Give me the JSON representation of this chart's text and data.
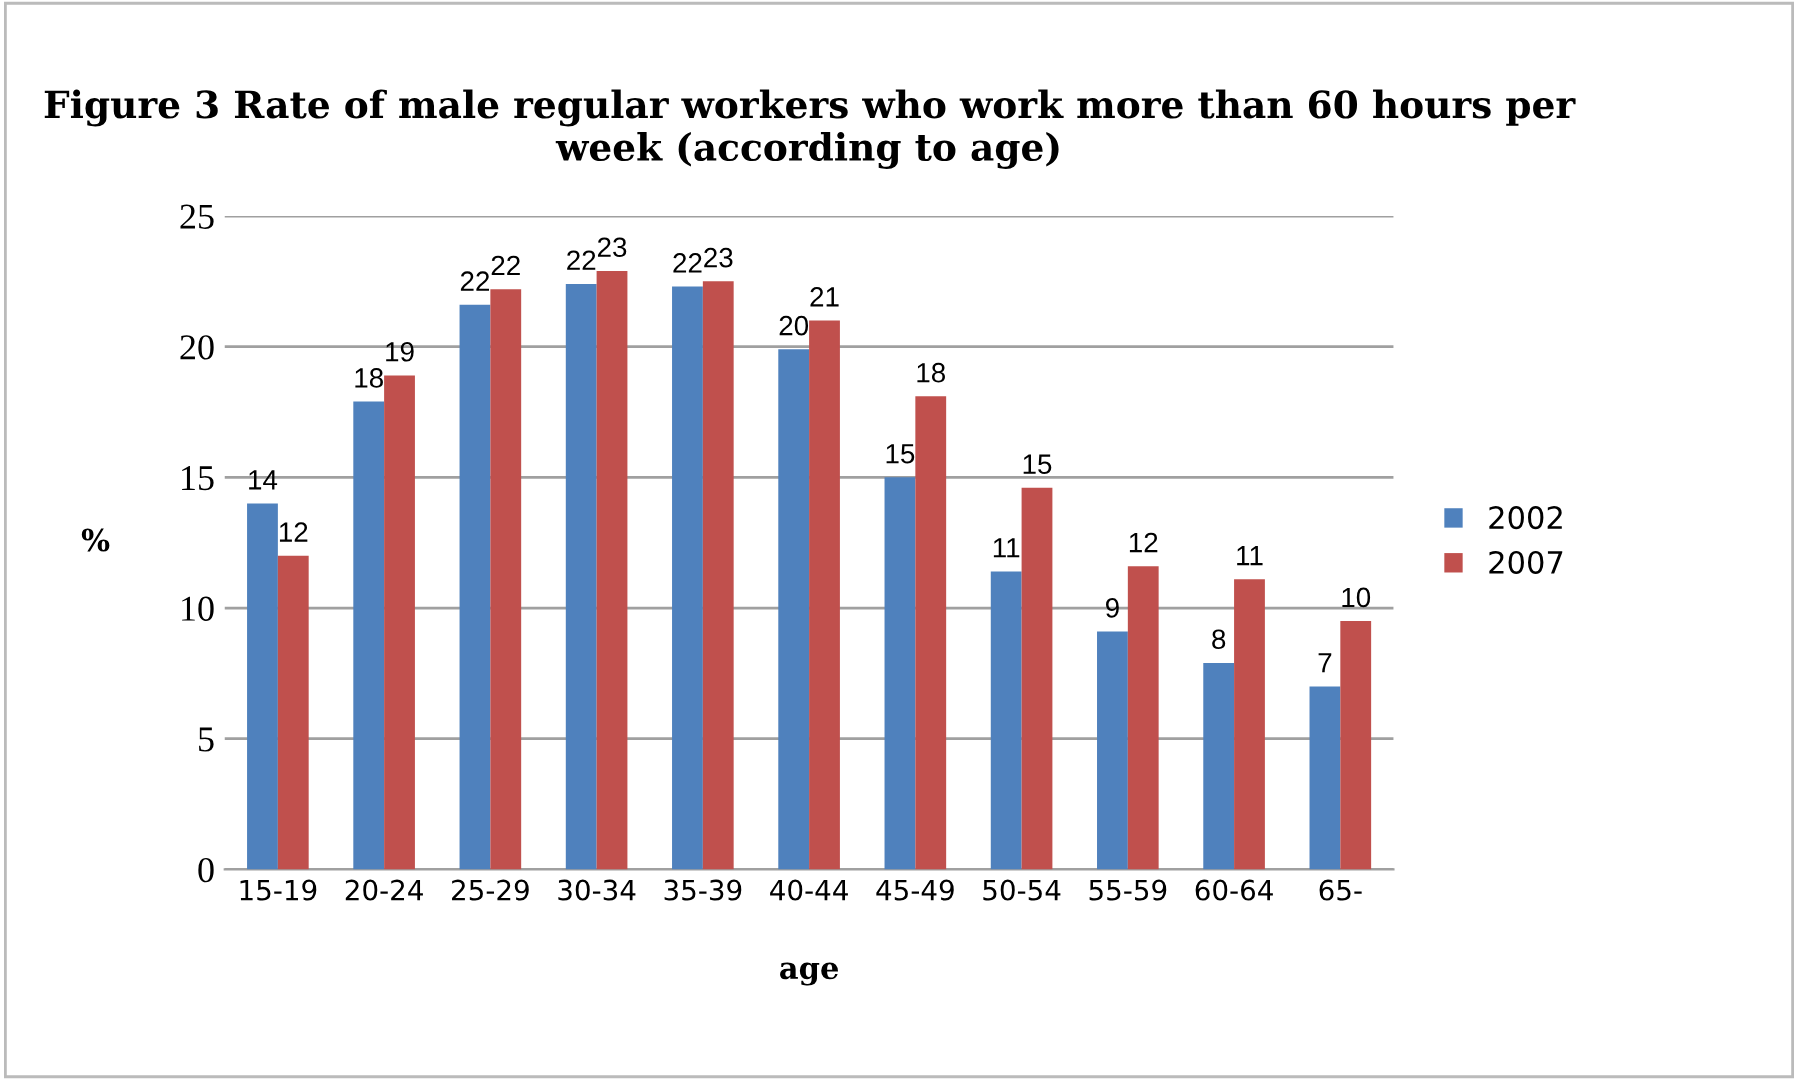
{
  "chart_data": {
    "type": "bar",
    "title": "Figure 3 Rate of male regular workers who work more than 60 hours per week (according to age)",
    "xlabel": "age",
    "ylabel": "%",
    "categories": [
      "15-19",
      "20-24",
      "25-29",
      "30-34",
      "35-39",
      "40-44",
      "45-49",
      "50-54",
      "55-59",
      "60-64",
      "65-"
    ],
    "series": [
      {
        "name": "2002",
        "color": "#4f81bd",
        "values": [
          14.0,
          17.9,
          21.6,
          22.4,
          22.3,
          19.9,
          15.0,
          11.4,
          9.1,
          7.9,
          7.0
        ],
        "value_labels": [
          "14",
          "18",
          "22",
          "22",
          "22",
          "20",
          "15",
          "11",
          "9",
          "8",
          "7"
        ]
      },
      {
        "name": "2007",
        "color": "#c0504d",
        "values": [
          12.0,
          18.9,
          22.2,
          22.9,
          22.5,
          21.0,
          18.1,
          14.6,
          11.6,
          11.1,
          9.5
        ],
        "value_labels": [
          "12",
          "19",
          "22",
          "23",
          "23",
          "21",
          "18",
          "15",
          "12",
          "11",
          "10"
        ]
      }
    ],
    "ylim": [
      0,
      25
    ],
    "yticks": [
      0,
      5,
      10,
      15,
      20,
      25
    ],
    "grid": "y",
    "legend": "right"
  }
}
